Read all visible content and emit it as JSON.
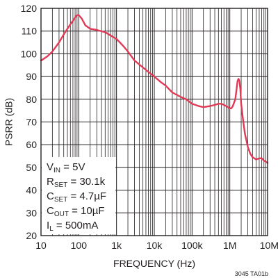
{
  "chart_data": {
    "type": "line",
    "title": "",
    "xlabel": "FREQUENCY (Hz)",
    "ylabel": "PSRR (dB)",
    "x_scale": "log",
    "xlim": [
      10,
      10000000
    ],
    "ylim": [
      20,
      120
    ],
    "grid": true,
    "x_tick_labels": [
      "10",
      "100",
      "1k",
      "10k",
      "100k",
      "1M",
      "10M"
    ],
    "y_tick_labels": [
      "20",
      "30",
      "40",
      "50",
      "60",
      "70",
      "80",
      "90",
      "100",
      "110",
      "120"
    ],
    "series": [
      {
        "color": "#e03a56",
        "x": [
          10,
          15,
          20,
          30,
          40,
          50,
          60,
          70,
          80,
          90,
          100,
          120,
          150,
          200,
          300,
          500,
          700,
          1000,
          1500,
          2000,
          3000,
          5000,
          7000,
          10000,
          15000,
          20000,
          30000,
          50000,
          70000,
          100000,
          150000,
          200000,
          300000,
          400000,
          500000,
          600000,
          700000,
          800000,
          900000,
          1000000,
          1100000,
          1200000,
          1400000,
          1500000,
          1600000,
          1700000,
          1800000,
          1900000,
          2000000,
          2200000,
          2500000,
          3000000,
          3500000,
          4000000,
          5000000,
          6000000,
          7000000,
          8000000,
          9000000,
          10000000
        ],
        "y": [
          97,
          99,
          101,
          105,
          108.5,
          111,
          113,
          114.5,
          116,
          117,
          117,
          115.5,
          112.5,
          111,
          110.5,
          109.5,
          108,
          106.5,
          103.5,
          101,
          97,
          94,
          92,
          90,
          87.5,
          86,
          83,
          81,
          80,
          78,
          77,
          76.5,
          77,
          77.5,
          78,
          78,
          77.5,
          77,
          76.5,
          76,
          76,
          77,
          80,
          84,
          88,
          89,
          88,
          84.5,
          78,
          72,
          65,
          59,
          56,
          54.5,
          53.5,
          54,
          54,
          53,
          52.5,
          52
        ]
      }
    ],
    "annotations": {
      "conditions": [
        {
          "main": "V",
          "sub": "IN",
          "rest": " = 5V"
        },
        {
          "main": "R",
          "sub": "SET",
          "rest": " = 30.1k"
        },
        {
          "main": "C",
          "sub": "SET",
          "rest": " = 4.7µF"
        },
        {
          "main": "C",
          "sub": "OUT",
          "rest": " = 10µF"
        },
        {
          "main": "I",
          "sub": "L",
          "rest": " = 500mA"
        }
      ],
      "figure_id": "3045 TA01b"
    }
  }
}
